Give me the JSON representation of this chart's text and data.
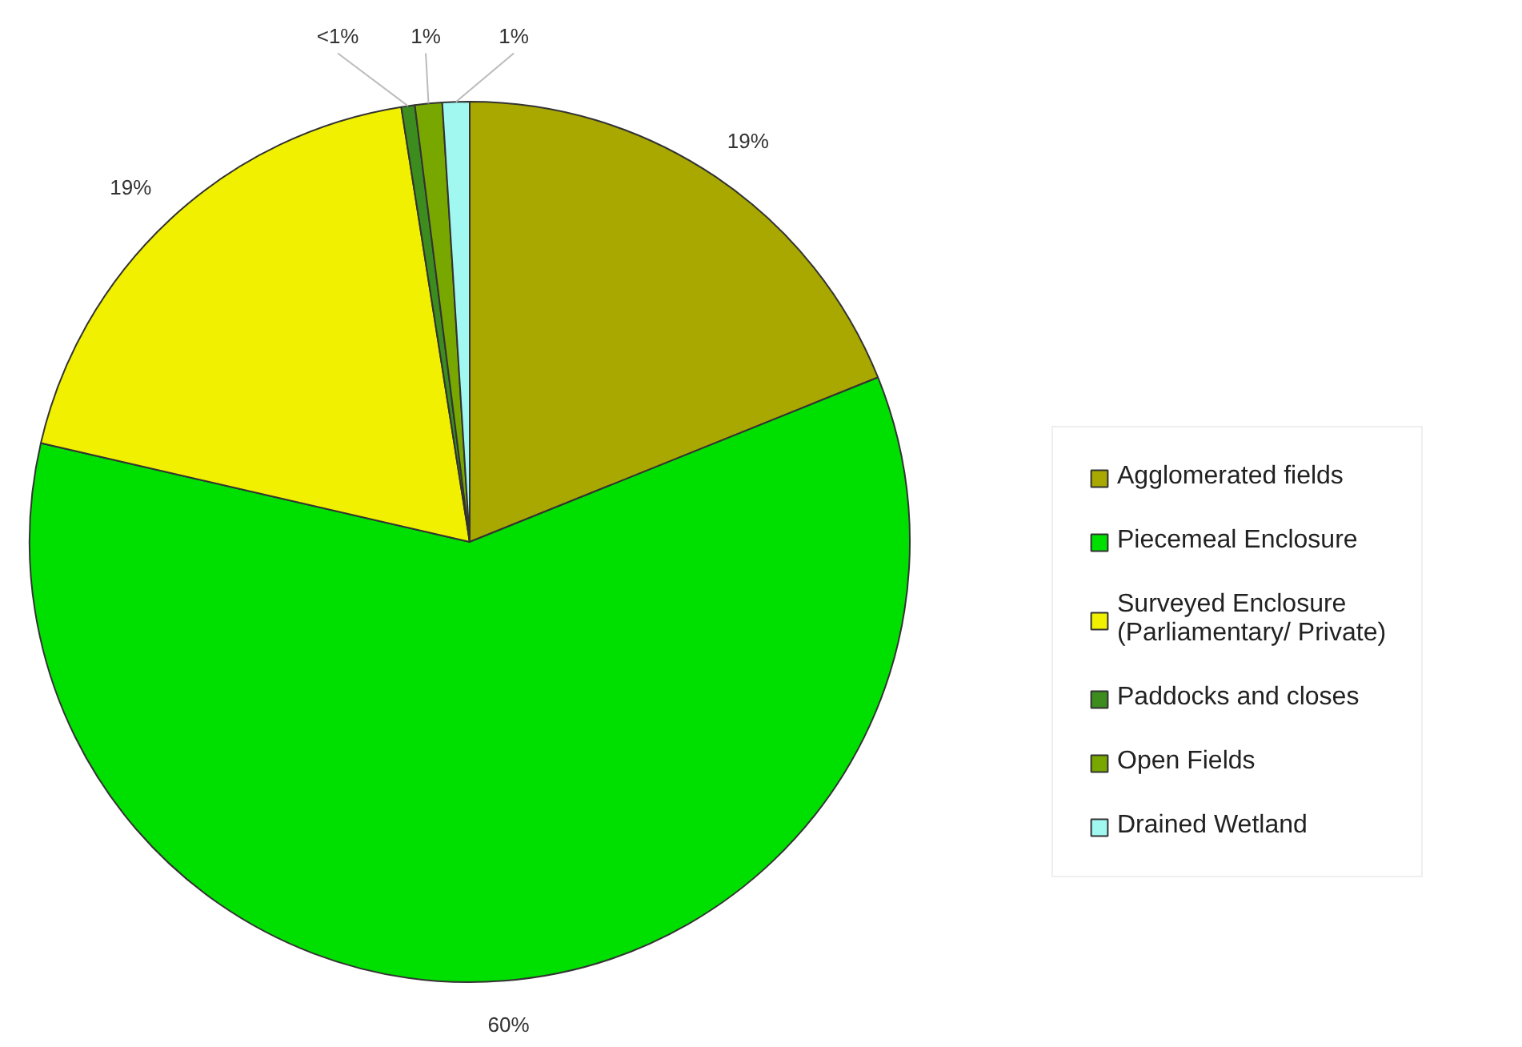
{
  "chart_data": {
    "type": "pie",
    "categories": [
      "Agglomerated fields",
      "Piecemeal Enclosure",
      "Surveyed Enclosure\n(Parliamentary/ Private)",
      "Paddocks and closes",
      "Open Fields",
      "Drained Wetland"
    ],
    "values": [
      19,
      60,
      19,
      0.5,
      1,
      1
    ],
    "value_labels": [
      "19%",
      "60%",
      "19%",
      "<1%",
      "1%",
      "1%"
    ],
    "colors": [
      "#a8a800",
      "#00e000",
      "#f0f000",
      "#3c8c1e",
      "#78a800",
      "#a0f8f0"
    ],
    "legend": "right"
  }
}
